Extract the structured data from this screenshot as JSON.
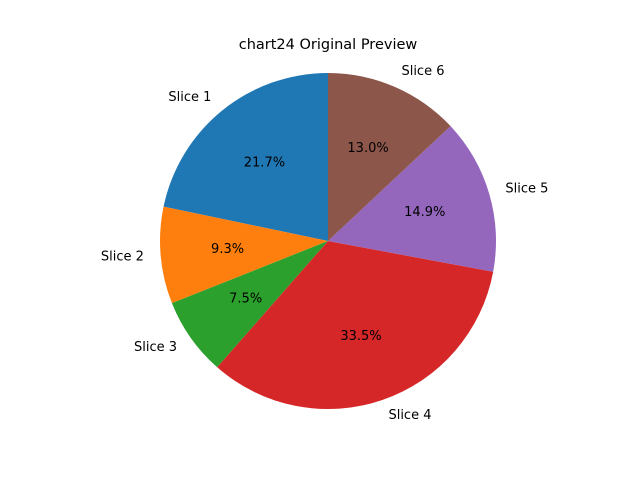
{
  "chart_data": {
    "type": "pie",
    "title": "chart24 Original Preview",
    "labels": [
      "Slice 1",
      "Slice 2",
      "Slice 3",
      "Slice 4",
      "Slice 5",
      "Slice 6"
    ],
    "values": [
      21.7,
      9.3,
      7.5,
      33.5,
      14.9,
      13.0
    ],
    "percent_labels": [
      "21.7%",
      "9.3%",
      "7.5%",
      "33.5%",
      "14.9%",
      "13.0%"
    ],
    "colors": [
      "#1f77b4",
      "#ff7f0e",
      "#2ca02c",
      "#d62728",
      "#9467bd",
      "#8c564b"
    ],
    "start_angle_deg": 90,
    "direction": "counterclockwise",
    "legend": "none"
  }
}
